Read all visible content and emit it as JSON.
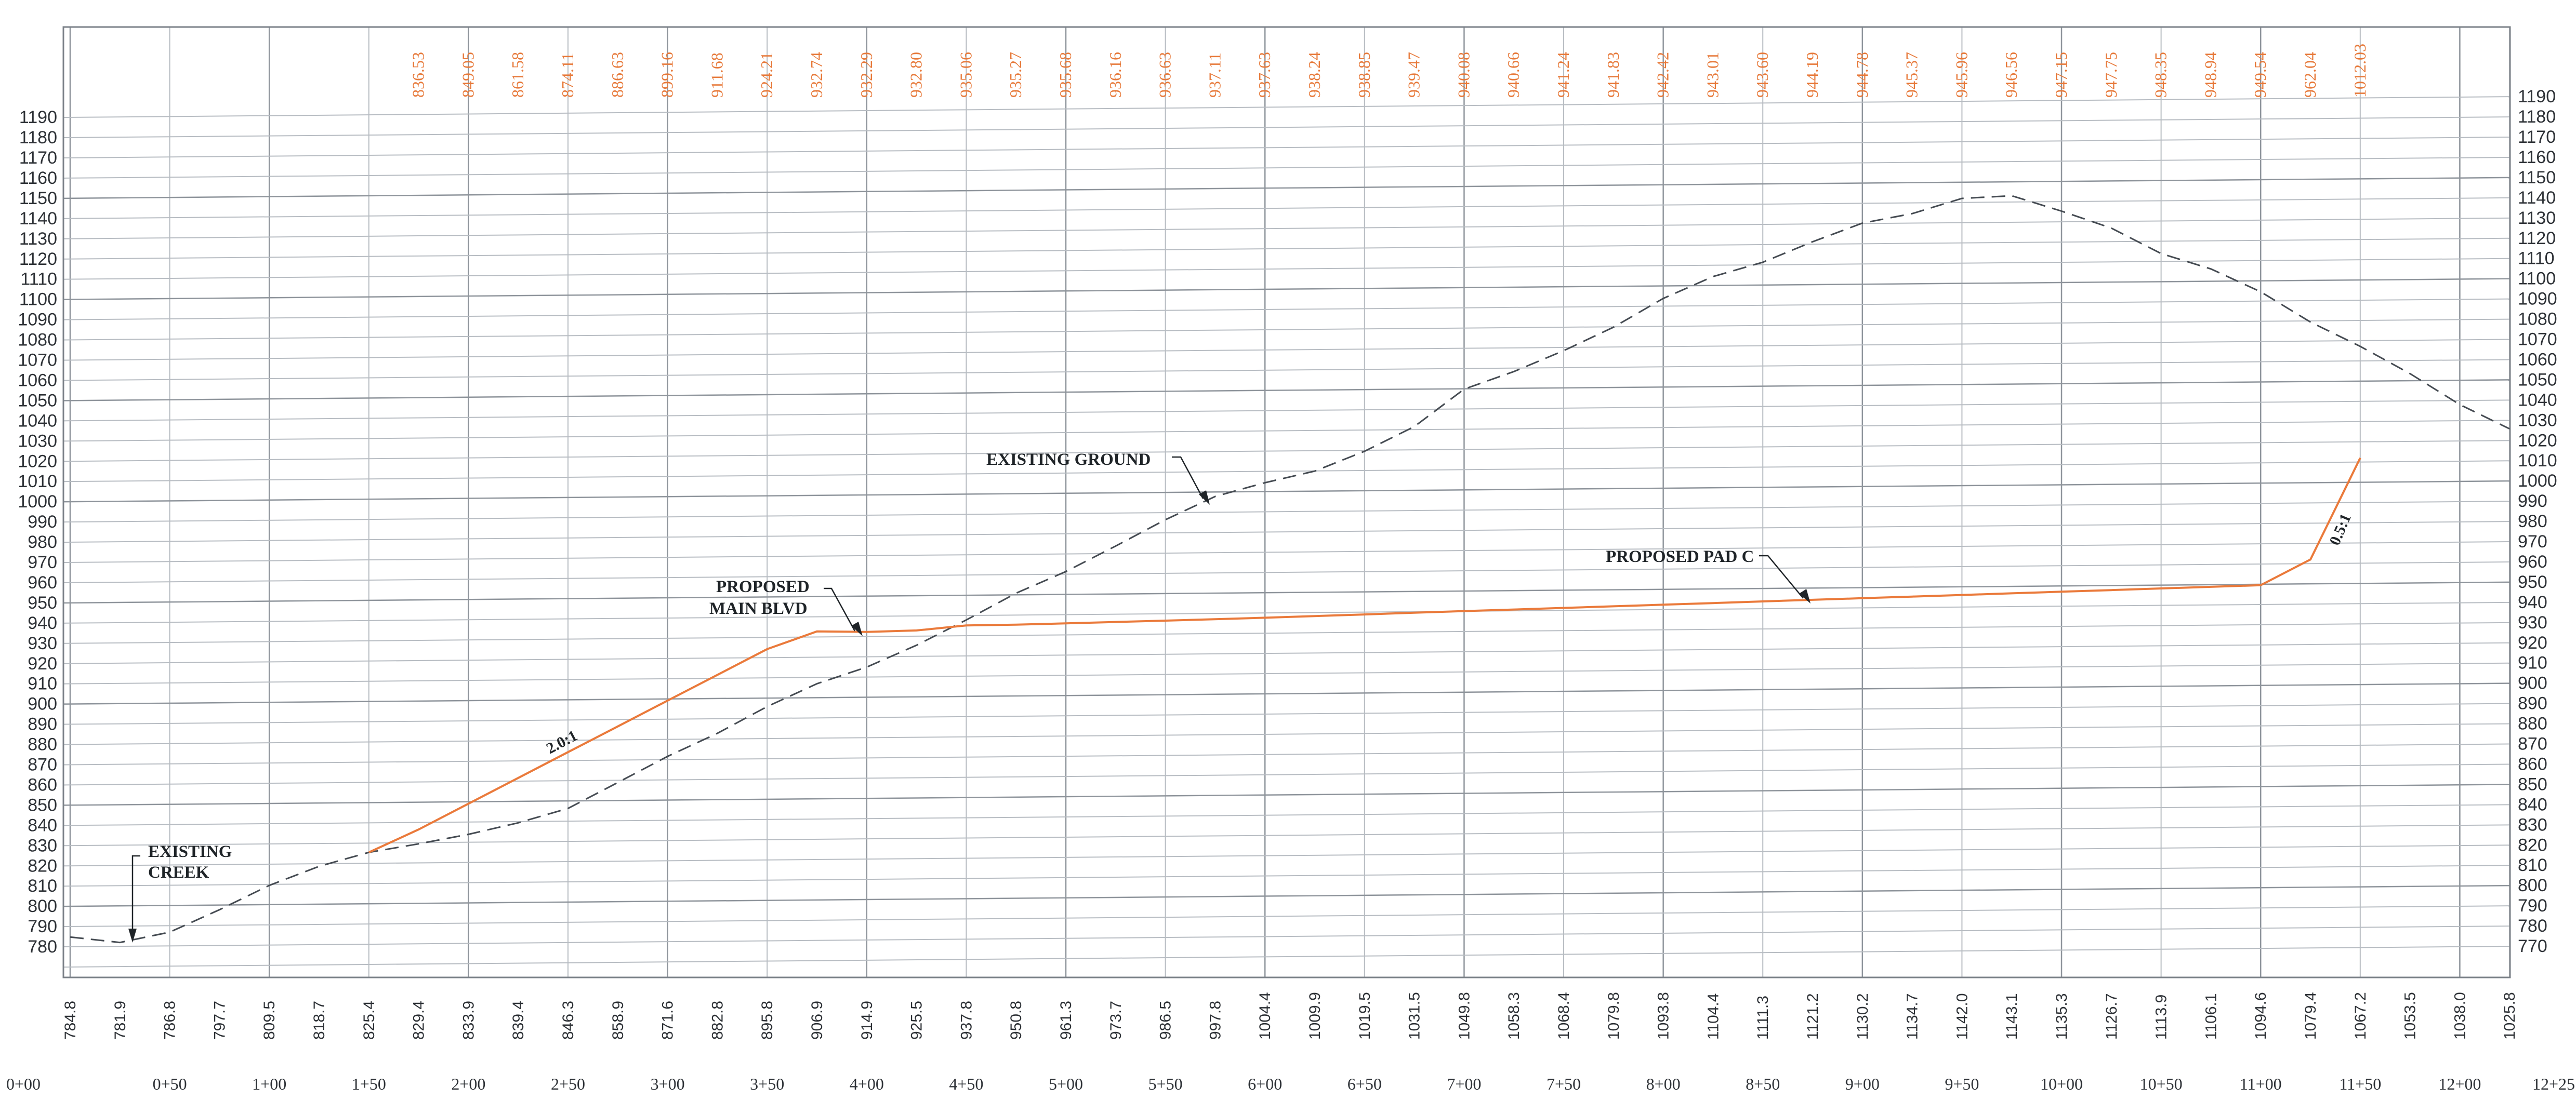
{
  "drawing": {
    "elevations": [
      770,
      780,
      790,
      800,
      810,
      820,
      830,
      840,
      850,
      860,
      870,
      880,
      890,
      900,
      910,
      920,
      930,
      940,
      950,
      960,
      970,
      980,
      990,
      1000,
      1010,
      1020,
      1030,
      1040,
      1050,
      1060,
      1070,
      1080,
      1090,
      1100,
      1110,
      1120,
      1130,
      1140,
      1150,
      1160,
      1170,
      1180,
      1190
    ],
    "left_axis_visible_from": 780,
    "right_axis_visible_to": 1190,
    "stations": [
      "0+00",
      "0+50",
      "1+00",
      "1+50",
      "2+00",
      "2+50",
      "3+00",
      "3+50",
      "4+00",
      "4+50",
      "5+00",
      "5+50",
      "6+00",
      "6+50",
      "7+00",
      "7+50",
      "8+00",
      "8+50",
      "9+00",
      "9+50",
      "10+00",
      "10+50",
      "11+00",
      "11+50",
      "12+00",
      "12+25"
    ],
    "existing_ground_elevations": [
      "784.8",
      "781.9",
      "786.8",
      "797.7",
      "809.5",
      "818.7",
      "825.4",
      "829.4",
      "833.9",
      "839.4",
      "846.3",
      "858.9",
      "871.6",
      "882.8",
      "895.8",
      "906.9",
      "914.9",
      "925.5",
      "937.8",
      "950.8",
      "961.3",
      "973.7",
      "986.5",
      "997.8",
      "1004.4",
      "1009.9",
      "1019.5",
      "1031.5",
      "1049.8",
      "1058.3",
      "1068.4",
      "1079.8",
      "1093.8",
      "1104.4",
      "1111.3",
      "1121.2",
      "1130.2",
      "1134.7",
      "1142.0",
      "1143.1",
      "1135.3",
      "1126.7",
      "1113.9",
      "1106.1",
      "1094.6",
      "1079.4",
      "1067.2",
      "1053.5",
      "1038.0",
      "1025.8"
    ],
    "proposed_elevations": [
      "836.53",
      "849.05",
      "861.58",
      "874.11",
      "886.63",
      "899.16",
      "911.68",
      "924.21",
      "932.74",
      "932.29",
      "932.80",
      "935.06",
      "935.27",
      "935.68",
      "936.16",
      "936.63",
      "937.11",
      "937.63",
      "938.24",
      "938.85",
      "939.47",
      "940.08",
      "940.66",
      "941.24",
      "941.83",
      "942.42",
      "943.01",
      "943.60",
      "944.19",
      "944.78",
      "945.37",
      "945.96",
      "946.56",
      "947.15",
      "947.75",
      "948.35",
      "948.94",
      "949.54",
      "962.04",
      "1012.03"
    ],
    "labels": {
      "existing_creek": [
        "EXISTING",
        "CREEK"
      ],
      "existing_ground": "EXISTING GROUND",
      "proposed_main_blvd": [
        "PROPOSED",
        "MAIN BLVD"
      ],
      "proposed_pad_c": "PROPOSED PAD C",
      "slope_left": "2.0:1",
      "slope_right": "0.5:1"
    },
    "colors": {
      "grid": "#b7bcc2",
      "existing_ground_line": "#454b52",
      "proposed_line": "#ea7a3b",
      "proposed_text": "#e77a3b",
      "annotation_text": "#1f2428"
    }
  }
}
